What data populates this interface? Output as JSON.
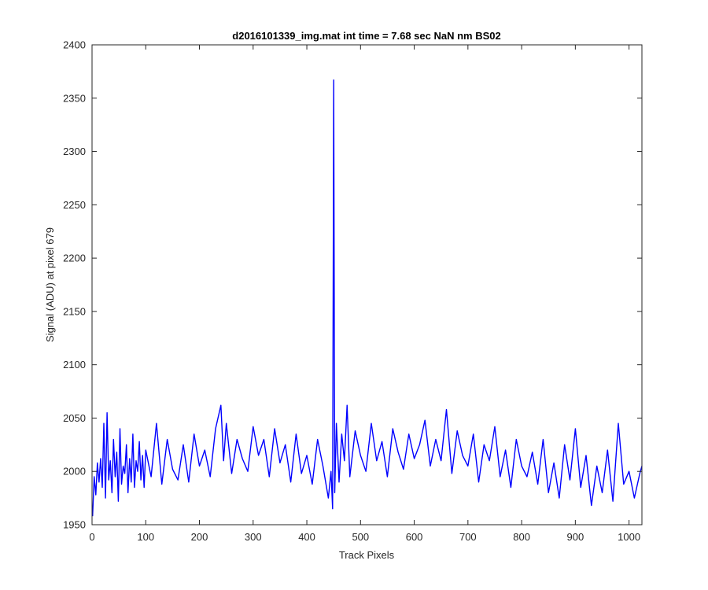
{
  "chart_data": {
    "type": "line",
    "title": "d2016101339_img.mat int time = 7.68 sec  NaN nm BS02",
    "xlabel": "Track Pixels",
    "ylabel": "Signal (ADU) at pixel 679",
    "xlim": [
      0,
      1024
    ],
    "ylim": [
      1950,
      2400
    ],
    "xticks": [
      0,
      100,
      200,
      300,
      400,
      500,
      600,
      700,
      800,
      900,
      1000
    ],
    "yticks": [
      1950,
      2000,
      2050,
      2100,
      2150,
      2200,
      2250,
      2300,
      2350,
      2400
    ],
    "grid": false,
    "line_color": "#0000ff",
    "series": [
      {
        "x": [
          1,
          4,
          7,
          10,
          13,
          16,
          19,
          22,
          25,
          28,
          31,
          34,
          37,
          40,
          43,
          46,
          49,
          52,
          55,
          58,
          61,
          64,
          67,
          70,
          73,
          76,
          79,
          82,
          85,
          88,
          91,
          94,
          97,
          100,
          110,
          120,
          130,
          140,
          150,
          160,
          170,
          180,
          190,
          200,
          210,
          220,
          230,
          240,
          245,
          250,
          260,
          270,
          280,
          290,
          300,
          310,
          320,
          330,
          340,
          350,
          360,
          370,
          380,
          390,
          400,
          410,
          420,
          430,
          440,
          445,
          448,
          450,
          452,
          455,
          460,
          465,
          470,
          475,
          480,
          490,
          500,
          510,
          520,
          530,
          540,
          550,
          560,
          570,
          580,
          590,
          600,
          610,
          620,
          630,
          640,
          650,
          660,
          670,
          680,
          690,
          700,
          710,
          720,
          730,
          740,
          750,
          760,
          770,
          780,
          790,
          800,
          810,
          820,
          830,
          840,
          850,
          860,
          870,
          880,
          890,
          900,
          910,
          920,
          930,
          940,
          950,
          960,
          970,
          980,
          990,
          1000,
          1010,
          1020,
          1024
        ],
        "y": [
          1958,
          1995,
          1978,
          2008,
          1990,
          2012,
          1985,
          2045,
          1975,
          2055,
          1992,
          2010,
          1980,
          2030,
          1995,
          2018,
          1972,
          2040,
          1988,
          2005,
          1998,
          2025,
          1980,
          2012,
          1990,
          2035,
          1985,
          2010,
          2000,
          2028,
          1992,
          2015,
          1985,
          2020,
          1995,
          2045,
          1988,
          2030,
          2002,
          1992,
          2025,
          1990,
          2035,
          2005,
          2020,
          1995,
          2040,
          2062,
          2010,
          2045,
          1998,
          2030,
          2012,
          2000,
          2042,
          2015,
          2030,
          1995,
          2040,
          2008,
          2025,
          1990,
          2035,
          1998,
          2015,
          1988,
          2030,
          2005,
          1975,
          2000,
          1965,
          2367,
          1980,
          2045,
          1990,
          2035,
          2010,
          2062,
          1995,
          2038,
          2015,
          2000,
          2045,
          2010,
          2028,
          1995,
          2040,
          2018,
          2002,
          2035,
          2012,
          2025,
          2048,
          2005,
          2030,
          2010,
          2058,
          1998,
          2038,
          2015,
          2005,
          2035,
          1990,
          2025,
          2010,
          2042,
          1995,
          2020,
          1985,
          2030,
          2005,
          1995,
          2018,
          1988,
          2030,
          1980,
          2008,
          1975,
          2025,
          1992,
          2040,
          1985,
          2015,
          1968,
          2005,
          1980,
          2020,
          1972,
          2045,
          1988,
          2000,
          1975,
          1998,
          2005
        ]
      }
    ]
  }
}
